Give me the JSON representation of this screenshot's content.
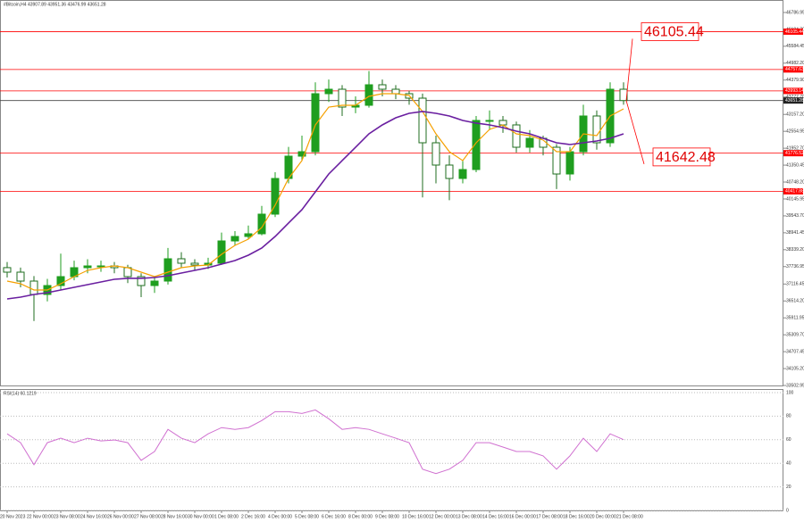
{
  "chart_data": {
    "type": "candlestick",
    "header": "#Bitcoin,H4 43907.89 43951.36 43476.99 43651.28",
    "categories": [
      "20 Nov 2023",
      null,
      "22 Nov 00:00",
      null,
      "23 Nov 08:00",
      null,
      "24 Nov 16:00",
      null,
      "26 Nov 00:00",
      null,
      "27 Nov 08:00",
      null,
      "28 Nov 16:00",
      null,
      "30 Nov 00:00",
      null,
      "1 Dec 08:00",
      null,
      "2 Dec 16:00",
      null,
      "4 Dec 00:00",
      null,
      "5 Dec 08:00",
      null,
      "6 Dec 16:00",
      null,
      "8 Dec 00:00",
      null,
      "9 Dec 08:00",
      null,
      "10 Dec 16:00",
      null,
      "12 Dec 00:00",
      null,
      "13 Dec 08:00",
      null,
      "14 Dec 16:00",
      null,
      "16 Dec 00:00",
      null,
      "17 Dec 08:00",
      null,
      "18 Dec 16:00",
      null,
      "20 Dec 00:00",
      null,
      "21 Dec 08:00"
    ],
    "open": [
      37700,
      37539,
      37221,
      36745,
      37062,
      37380,
      37698,
      37761,
      37761,
      37698,
      37380,
      37062,
      37221,
      38016,
      37857,
      37793,
      37857,
      38651,
      38810,
      38906,
      39605,
      40876,
      41670,
      41829,
      43895,
      44054,
      43418,
      43482,
      44213,
      44054,
      43895,
      43736,
      42147,
      41353,
      40876,
      41194,
      42942,
      42942,
      42783,
      41988,
      42306,
      41988,
      41035,
      41829,
      43101,
      42147,
      44054
    ],
    "high": [
      37900,
      37700,
      37400,
      37300,
      38200,
      37950,
      38000,
      37950,
      37900,
      37800,
      37500,
      37400,
      38400,
      38250,
      38000,
      38050,
      38950,
      39000,
      39200,
      39900,
      41100,
      42000,
      42400,
      44300,
      44400,
      44200,
      43800,
      44700,
      44400,
      44200,
      44000,
      43900,
      42400,
      41700,
      41500,
      43100,
      43300,
      43100,
      42900,
      42600,
      42400,
      42100,
      42000,
      43500,
      43300,
      44300,
      44300
    ],
    "low": [
      37350,
      37000,
      35800,
      36500,
      36900,
      37250,
      37500,
      37550,
      37500,
      37150,
      36650,
      36800,
      37100,
      37700,
      37600,
      37650,
      37800,
      38500,
      38700,
      38850,
      39500,
      40700,
      41500,
      41700,
      43600,
      43100,
      43200,
      43400,
      43800,
      43700,
      43500,
      40200,
      40700,
      40100,
      40700,
      41100,
      42600,
      42500,
      41800,
      41800,
      41700,
      40500,
      40800,
      41700,
      41900,
      42000,
      43500
    ],
    "close": [
      37539,
      37221,
      36745,
      37062,
      37380,
      37698,
      37761,
      37761,
      37698,
      37380,
      37062,
      37221,
      38016,
      37857,
      37793,
      37857,
      38651,
      38810,
      38906,
      39605,
      40876,
      41670,
      41829,
      43895,
      44054,
      43418,
      43482,
      44213,
      44054,
      43895,
      43736,
      42147,
      41353,
      40876,
      41194,
      42942,
      42942,
      42783,
      41988,
      42306,
      41988,
      41035,
      41829,
      43101,
      42147,
      44054,
      43651
    ],
    "up_color": "#1f9e1f",
    "down_color": "#1f6e1f",
    "overlays": [
      {
        "color": "#f5a000",
        "values": [
          37221,
          37126,
          36904,
          36904,
          37126,
          37380,
          37602,
          37698,
          37761,
          37698,
          37539,
          37380,
          37539,
          37698,
          37761,
          37793,
          38175,
          38492,
          38715,
          39128,
          39923,
          40876,
          41512,
          42783,
          43418,
          43482,
          43482,
          43800,
          43895,
          43895,
          43832,
          43260,
          42465,
          41829,
          41512,
          42147,
          42624,
          42783,
          42465,
          42401,
          42243,
          41829,
          41829,
          42465,
          42401,
          43101,
          43355
        ]
      },
      {
        "color": "#6a1fa0",
        "values": [
          36586,
          36649,
          36745,
          36808,
          36904,
          36999,
          37094,
          37189,
          37285,
          37317,
          37317,
          37348,
          37412,
          37507,
          37602,
          37698,
          37825,
          37952,
          38143,
          38397,
          38810,
          39287,
          39764,
          40399,
          41035,
          41512,
          41988,
          42465,
          42783,
          43037,
          43196,
          43260,
          43196,
          43101,
          42942,
          42847,
          42783,
          42688,
          42560,
          42465,
          42306,
          42147,
          42084,
          42147,
          42211,
          42306,
          42465
        ]
      }
    ],
    "ylim": [
      33502.95,
      46786.95
    ],
    "yticks": [
      46786.95,
      {
        "value": 46184.7,
        "label": "46184.70"
      },
      45584.45,
      {
        "value": 44982.2,
        "label": "44982.20"
      },
      {
        "value": 44379.9,
        "label": "44379.90"
      },
      {
        "value": 43777.7,
        "label": "43777.70"
      },
      {
        "value": 43157.2,
        "label": "43157.20"
      },
      42554.95,
      {
        "value": 41952.7,
        "label": "41952.70"
      },
      41350.45,
      {
        "value": 40748.2,
        "label": "40748.20"
      },
      40145.95,
      {
        "value": 39543.7,
        "label": "39543.70"
      },
      38941.45,
      {
        "value": 38339.2,
        "label": "38339.20"
      },
      37736.95,
      37116.45,
      {
        "value": 36514.2,
        "label": "36514.20"
      },
      35911.95,
      {
        "value": 35309.7,
        "label": "35309.70"
      },
      34707.45,
      {
        "value": 34105.2,
        "label": "34105.20"
      },
      33502.95
    ],
    "levels": [
      46105.44,
      44757.63,
      43993.14,
      41776.52,
      40417.88
    ],
    "level_color": "#ff0000",
    "last_price": 43651.28,
    "annotations": [
      46105.44,
      41642.48
    ],
    "rsi": {
      "title": "RSI(14) 60.1219",
      "color": "#d070d0",
      "values": [
        65,
        57.5,
        38.8,
        57.5,
        61.3,
        57.5,
        61.3,
        59,
        59.8,
        57.5,
        42.5,
        50,
        68.8,
        61.3,
        57.5,
        65,
        70.3,
        68.8,
        70.3,
        76.3,
        83.8,
        83.8,
        82.3,
        85.3,
        77.8,
        68.8,
        70.3,
        68.8,
        65,
        61.3,
        57.5,
        35,
        31.3,
        35,
        42.5,
        57.5,
        57.5,
        53.8,
        50,
        50,
        46.3,
        35,
        46.3,
        61.3,
        50,
        65,
        60.1
      ],
      "ylim": [
        0,
        100
      ],
      "yticks": [
        100,
        80,
        60,
        40,
        20,
        0
      ]
    }
  }
}
